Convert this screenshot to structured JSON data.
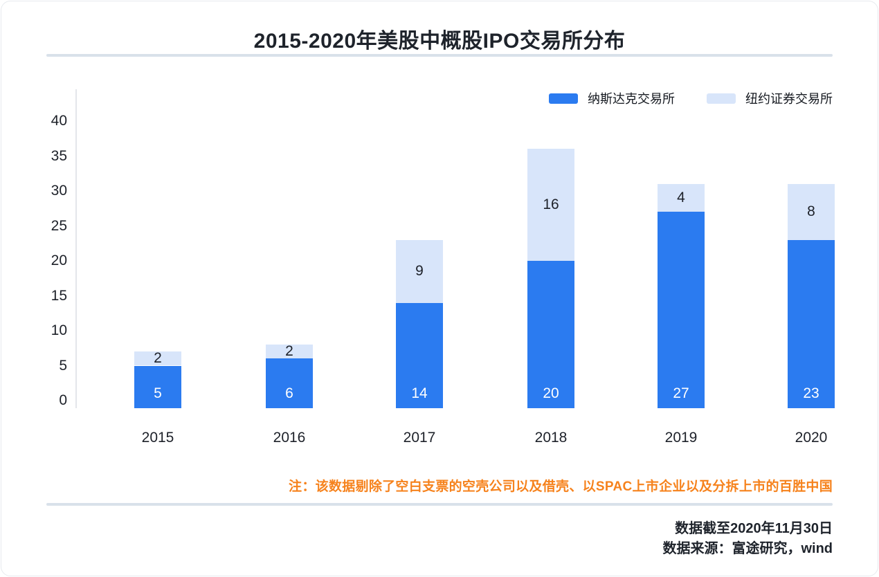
{
  "title": "2015-2020年美股中概股IPO交易所分布",
  "legend": [
    {
      "label": "纳斯达克交易所",
      "color": "#2B7BF0"
    },
    {
      "label": "纽约证券交易所",
      "color": "#D8E5FA"
    }
  ],
  "chart_data": {
    "type": "bar",
    "stacked": true,
    "title": "2015-2020年美股中概股IPO交易所分布",
    "categories": [
      "2015",
      "2016",
      "2017",
      "2018",
      "2019",
      "2020"
    ],
    "series": [
      {
        "name": "纳斯达克交易所",
        "color": "#2B7BF0",
        "values": [
          5,
          6,
          14,
          20,
          27,
          23
        ],
        "value_label_color": "#FFFFFF",
        "value_label_position": "bottom"
      },
      {
        "name": "纽约证券交易所",
        "color": "#D8E5FA",
        "values": [
          2,
          2,
          9,
          16,
          4,
          8
        ],
        "value_label_color": "#1D2129",
        "value_label_position": "center"
      }
    ],
    "xlabel": "",
    "ylabel": "",
    "ylim": [
      0,
      40
    ],
    "yticks": [
      0,
      5,
      10,
      15,
      20,
      25,
      30,
      35,
      40
    ],
    "grid": false,
    "legend_position": "top-right"
  },
  "note": "注：该数据剔除了空白支票的空壳公司以及借壳、以SPAC上市企业以及分拆上市的百胜中国",
  "footer": {
    "as_of": "数据截至2020年11月30日",
    "source": "数据来源：富途研究，wind"
  },
  "colors": {
    "nasdaq_blue": "#2B7BF0",
    "nyse_light_blue": "#D8E5FA",
    "note_orange": "#F6821C",
    "text_dark": "#1D2129",
    "divider": "#D9E1EA",
    "axis_line": "#E4E6EA"
  }
}
